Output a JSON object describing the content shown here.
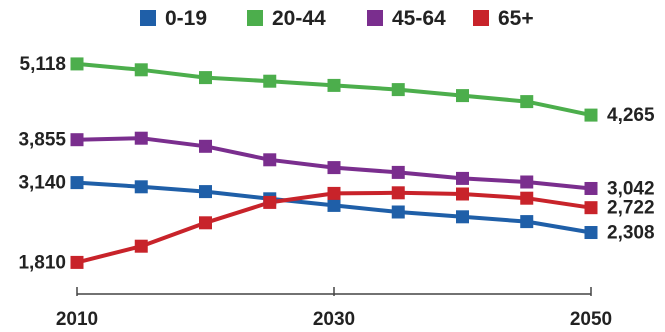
{
  "chart_data": {
    "type": "line",
    "title": "",
    "xlabel": "",
    "ylabel": "",
    "x": [
      2010,
      2015,
      2020,
      2025,
      2030,
      2035,
      2040,
      2045,
      2050
    ],
    "x_ticks": [
      "2010",
      "2030",
      "2050"
    ],
    "ylim": [
      1650,
      5250
    ],
    "grid": false,
    "legend_position": "top",
    "series": [
      {
        "name": "0-19",
        "color": "#1f5fa8",
        "values": [
          3140,
          3070,
          2990,
          2870,
          2760,
          2650,
          2570,
          2490,
          2308
        ],
        "start_label": "3,140",
        "end_label": "2,308"
      },
      {
        "name": "20-44",
        "color": "#4cae4c",
        "values": [
          5118,
          5020,
          4890,
          4830,
          4760,
          4690,
          4590,
          4490,
          4265
        ],
        "start_label": "5,118",
        "end_label": "4,265"
      },
      {
        "name": "45-64",
        "color": "#7a2e8e",
        "values": [
          3855,
          3880,
          3745,
          3520,
          3390,
          3310,
          3210,
          3150,
          3042
        ],
        "start_label": "3,855",
        "end_label": "3,042"
      },
      {
        "name": "65+",
        "color": "#c8232a",
        "values": [
          1810,
          2080,
          2470,
          2810,
          2960,
          2970,
          2950,
          2880,
          2722
        ],
        "start_label": "1,810",
        "end_label": "2,722"
      }
    ]
  }
}
